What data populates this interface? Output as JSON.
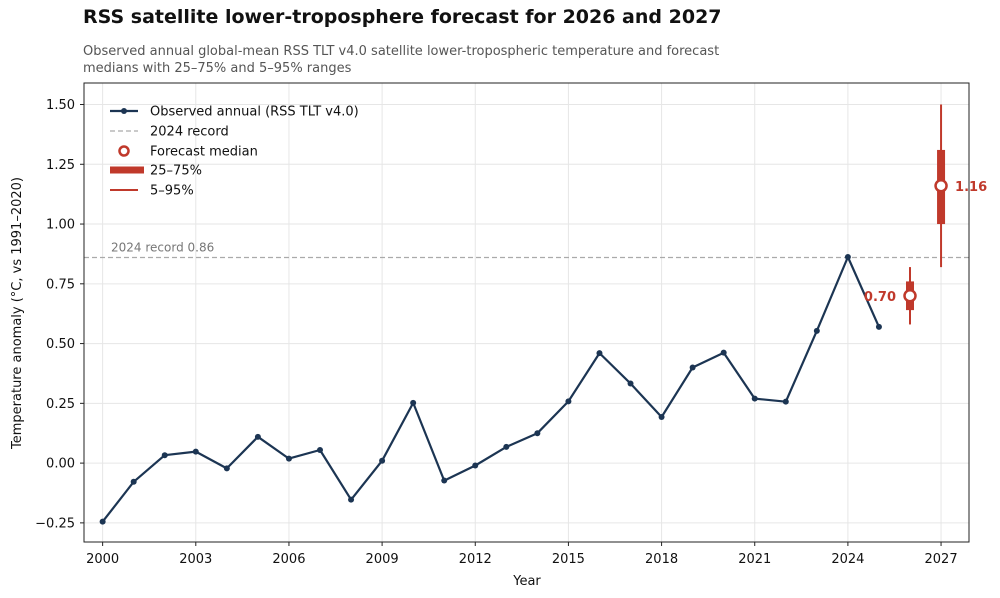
{
  "title": "RSS satellite lower-troposphere forecast for 2026 and 2027",
  "subtitle": "Observed annual global-mean RSS TLT v4.0 satellite lower-tropospheric temperature and forecast medians with 25–75% and 5–95% ranges",
  "chart_data": {
    "type": "line",
    "xlabel": "Year",
    "ylabel": "Temperature anomaly (°C, vs 1991–2020)",
    "xlim": [
      1999.4,
      2027.9
    ],
    "ylim": [
      -0.33,
      1.59
    ],
    "x_ticks": [
      2000,
      2003,
      2006,
      2009,
      2012,
      2015,
      2018,
      2021,
      2024,
      2027
    ],
    "y_ticks": [
      -0.25,
      0.0,
      0.25,
      0.5,
      0.75,
      1.0,
      1.25,
      1.5
    ],
    "y_tick_labels": [
      "−0.25",
      "0.00",
      "0.25",
      "0.50",
      "0.75",
      "1.00",
      "1.25",
      "1.50"
    ],
    "grid": true,
    "legend_position": "top-left",
    "legend": {
      "observed": "Observed annual (RSS TLT v4.0)",
      "record": "2024 record",
      "median": "Forecast median",
      "iqr": "25–75%",
      "range90": "5–95%"
    },
    "series": [
      {
        "name": "Observed annual (RSS TLT v4.0)",
        "color": "#1c3553",
        "x": [
          2000,
          2001,
          2002,
          2003,
          2004,
          2005,
          2006,
          2007,
          2008,
          2009,
          2010,
          2011,
          2012,
          2013,
          2014,
          2015,
          2016,
          2017,
          2018,
          2019,
          2020,
          2021,
          2022,
          2023,
          2024,
          2025
        ],
        "y": [
          -0.245,
          -0.078,
          0.033,
          0.048,
          -0.022,
          0.11,
          0.019,
          0.055,
          -0.153,
          0.01,
          0.252,
          -0.073,
          -0.01,
          0.068,
          0.125,
          0.258,
          0.46,
          0.333,
          0.193,
          0.4,
          0.462,
          0.27,
          0.257,
          0.553,
          0.862,
          0.57
        ]
      }
    ],
    "record": {
      "value": 0.86,
      "label": "2024 record 0.86",
      "color": "#aaaaaa"
    },
    "forecasts": [
      {
        "year": 2026,
        "median": 0.7,
        "median_label": "0.70",
        "p25": 0.64,
        "p75": 0.76,
        "p5": 0.58,
        "p95": 0.82
      },
      {
        "year": 2027,
        "median": 1.16,
        "median_label": "1.16",
        "p25": 1.0,
        "p75": 1.31,
        "p5": 0.82,
        "p95": 1.5
      }
    ],
    "forecast_color": "#c0392b"
  }
}
